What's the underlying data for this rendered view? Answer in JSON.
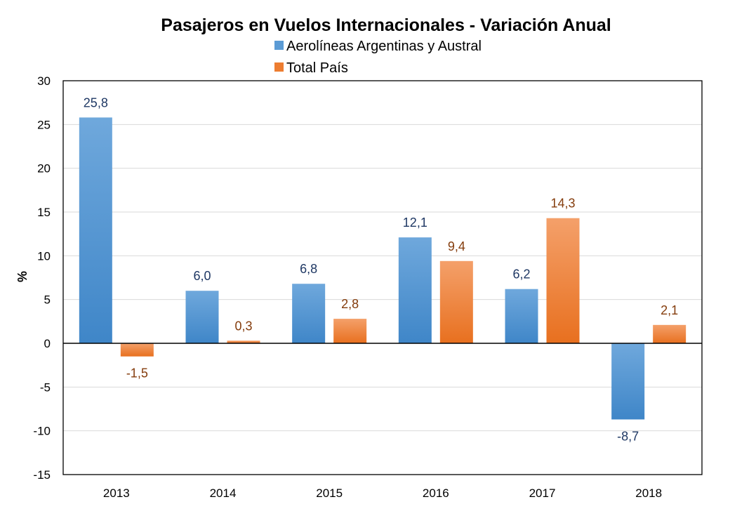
{
  "chart_data": {
    "type": "bar",
    "title": "Pasajeros en Vuelos Internacionales - Variación Anual",
    "xlabel": "",
    "ylabel": "%",
    "categories": [
      "2013",
      "2014",
      "2015",
      "2016",
      "2017",
      "2018"
    ],
    "series": [
      {
        "name": "Aerolíneas Argentinas y Austral",
        "values": [
          25.8,
          6.0,
          6.8,
          12.1,
          6.2,
          -8.7
        ],
        "labels": [
          "25,8",
          "6,0",
          "6,8",
          "12,1",
          "6,2",
          "-8,7"
        ],
        "color": "#5b9bd5",
        "label_color": "#1f3864"
      },
      {
        "name": "Total País",
        "values": [
          -1.5,
          0.3,
          2.8,
          9.4,
          14.3,
          2.1
        ],
        "labels": [
          "-1,5",
          "0,3",
          "2,8",
          "9,4",
          "14,3",
          "2,1"
        ],
        "color": "#ed7d31",
        "label_color": "#843c0c"
      }
    ],
    "ylim": [
      -15,
      30
    ],
    "yticks": [
      -15,
      -10,
      -5,
      0,
      5,
      10,
      15,
      20,
      25,
      30
    ],
    "grid": true,
    "legend": "top-center"
  }
}
